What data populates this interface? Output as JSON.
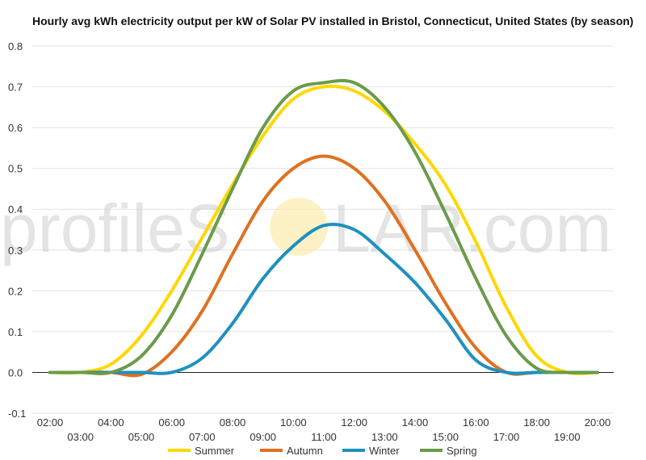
{
  "chart_data": {
    "type": "line",
    "title": "Hourly avg kWh electricity output per kW of Solar PV installed in Bristol, Connecticut, United States (by season)",
    "xlabel": "",
    "ylabel": "",
    "ylim": [
      -0.1,
      0.8
    ],
    "y_ticks": [
      "-0.1",
      "0.0",
      "0.1",
      "0.2",
      "0.3",
      "0.4",
      "0.5",
      "0.6",
      "0.7",
      "0.8"
    ],
    "x_ticks_top": [
      "02:00",
      "04:00",
      "06:00",
      "08:00",
      "10:00",
      "12:00",
      "14:00",
      "16:00",
      "18:00",
      "20:00"
    ],
    "x_ticks_bottom": [
      "03:00",
      "05:00",
      "07:00",
      "09:00",
      "11:00",
      "13:00",
      "15:00",
      "17:00",
      "19:00"
    ],
    "grid": true,
    "legend_position": "bottom",
    "x": [
      2,
      3,
      4,
      5,
      6,
      7,
      8,
      9,
      10,
      11,
      12,
      13,
      14,
      15,
      16,
      17,
      18,
      19,
      20
    ],
    "series": [
      {
        "name": "Summer",
        "color": "#FFD700",
        "values": [
          0.0,
          0.0,
          0.02,
          0.09,
          0.2,
          0.33,
          0.46,
          0.58,
          0.67,
          0.7,
          0.69,
          0.64,
          0.56,
          0.46,
          0.32,
          0.16,
          0.04,
          0.0,
          0.0
        ]
      },
      {
        "name": "Autumn",
        "color": "#E07020",
        "values": [
          0.0,
          0.0,
          0.0,
          -0.005,
          0.05,
          0.15,
          0.29,
          0.42,
          0.5,
          0.53,
          0.5,
          0.42,
          0.3,
          0.17,
          0.06,
          0.0,
          0.0,
          0.0,
          0.0
        ]
      },
      {
        "name": "Winter",
        "color": "#1E90C0",
        "values": [
          0.0,
          0.0,
          0.0,
          0.0,
          0.0,
          0.035,
          0.12,
          0.23,
          0.31,
          0.36,
          0.35,
          0.29,
          0.22,
          0.13,
          0.03,
          0.0,
          0.0,
          0.0,
          0.0
        ]
      },
      {
        "name": "Spring",
        "color": "#6B9B4A",
        "values": [
          0.0,
          0.0,
          0.0,
          0.04,
          0.14,
          0.29,
          0.45,
          0.6,
          0.69,
          0.71,
          0.71,
          0.65,
          0.54,
          0.39,
          0.23,
          0.09,
          0.01,
          0.0,
          0.0
        ]
      }
    ]
  },
  "watermark": {
    "text_left": "profileS",
    "text_right": "LAR.com"
  }
}
